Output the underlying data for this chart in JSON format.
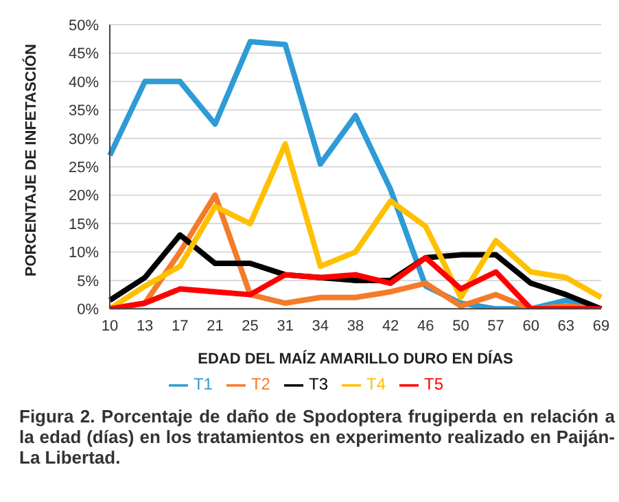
{
  "chart_data": {
    "type": "line",
    "xlabel": "EDAD DEL MAÍZ AMARILLO DURO EN DÍAS",
    "ylabel": "PORCENTAJE DE INFETASCIÓN",
    "categories": [
      "10",
      "13",
      "17",
      "21",
      "25",
      "31",
      "34",
      "38",
      "42",
      "46",
      "50",
      "57",
      "60",
      "63",
      "69"
    ],
    "series": [
      {
        "name": "T1",
        "color": "#2e9bd6",
        "values": [
          27,
          40,
          40,
          32.5,
          47,
          46.5,
          25.5,
          34,
          21,
          4,
          1,
          0,
          0,
          1.5,
          0
        ]
      },
      {
        "name": "T2",
        "color": "#f47b2a",
        "values": [
          0,
          1,
          10,
          20,
          2.5,
          1,
          2,
          2,
          3,
          4.5,
          0.5,
          2.5,
          0,
          0.5,
          0
        ]
      },
      {
        "name": "T3",
        "color": "#000000",
        "values": [
          1.5,
          5.5,
          13,
          8,
          8,
          6,
          5.5,
          5,
          5,
          9,
          9.5,
          9.5,
          4.5,
          2.5,
          0
        ]
      },
      {
        "name": "T4",
        "color": "#ffc000",
        "values": [
          0,
          4,
          7.5,
          18,
          15,
          29,
          7.5,
          10,
          19,
          14.5,
          2,
          12,
          6.5,
          5.5,
          2
        ]
      },
      {
        "name": "T5",
        "color": "#ff0000",
        "values": [
          0,
          1,
          3.5,
          3,
          2.5,
          6,
          5.5,
          6,
          4.5,
          9,
          3.5,
          6.5,
          0,
          0,
          0
        ]
      }
    ],
    "ylim": [
      0,
      50
    ],
    "yticks": [
      {
        "value": 0,
        "label": "0%"
      },
      {
        "value": 5,
        "label": "5%"
      },
      {
        "value": 10,
        "label": "10%"
      },
      {
        "value": 15,
        "label": "15%"
      },
      {
        "value": 20,
        "label": "20%"
      },
      {
        "value": 25,
        "label": "25%"
      },
      {
        "value": 30,
        "label": "30%"
      },
      {
        "value": 35,
        "label": "35%"
      },
      {
        "value": 40,
        "label": "40%"
      },
      {
        "value": 45,
        "label": "45%"
      },
      {
        "value": 50,
        "label": "50%"
      }
    ],
    "grid": "y",
    "legend": "bottom",
    "marker": "none",
    "line_style": "solid",
    "annotations": [
      "Figura 2. Porcentaje de daño de Spodoptera frugiperda en relación a la edad (días) en los tratamientos en experimento realizado en Paiján-La Libertad."
    ]
  }
}
